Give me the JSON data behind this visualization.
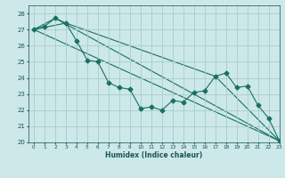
{
  "title": "",
  "xlabel": "Humidex (Indice chaleur)",
  "ylabel": "",
  "background_color": "#cce8e8",
  "grid_color": "#aacccc",
  "line_color": "#1a7060",
  "xlim": [
    -0.5,
    23
  ],
  "ylim": [
    20,
    28.5
  ],
  "xticks": [
    0,
    1,
    2,
    3,
    4,
    5,
    6,
    7,
    8,
    9,
    10,
    11,
    12,
    13,
    14,
    15,
    16,
    17,
    18,
    19,
    20,
    21,
    22,
    23
  ],
  "yticks": [
    20,
    21,
    22,
    23,
    24,
    25,
    26,
    27,
    28
  ],
  "lines": [
    {
      "x": [
        0,
        1,
        2,
        3,
        4,
        5,
        6,
        7,
        8,
        9,
        10,
        11,
        12,
        13,
        14,
        15,
        16,
        17,
        18,
        19,
        20,
        21,
        22,
        23
      ],
      "y": [
        27.0,
        27.2,
        27.7,
        27.4,
        26.3,
        25.1,
        25.0,
        23.7,
        23.4,
        23.3,
        22.1,
        22.2,
        22.0,
        22.6,
        22.5,
        23.1,
        23.2,
        24.1,
        24.3,
        23.4,
        23.5,
        22.3,
        21.5,
        20.1
      ],
      "marker": "D",
      "markersize": 2.5
    },
    {
      "x": [
        0,
        2,
        23
      ],
      "y": [
        27.0,
        27.7,
        20.1
      ],
      "marker": null
    },
    {
      "x": [
        0,
        23
      ],
      "y": [
        27.0,
        20.1
      ],
      "marker": null
    },
    {
      "x": [
        0,
        3,
        17,
        23
      ],
      "y": [
        27.0,
        27.4,
        24.1,
        20.1
      ],
      "marker": null
    }
  ]
}
